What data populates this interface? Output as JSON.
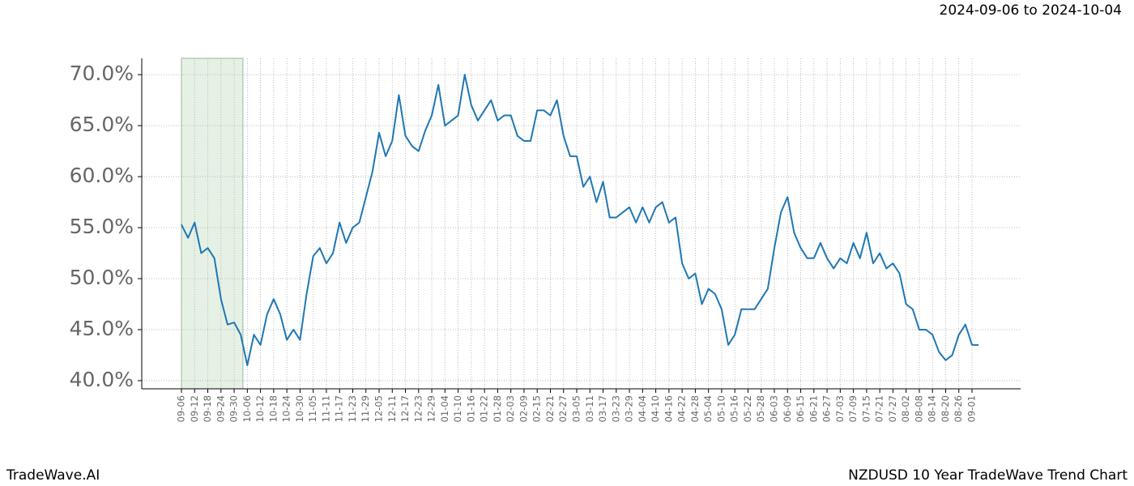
{
  "chart_data": {
    "type": "line",
    "subtitle": "2024-09-06 to 2024-10-04",
    "footer_left": "TradeWave.AI",
    "footer_right": "NZDUSD 10 Year TradeWave Trend Chart",
    "categories": [
      "09-06",
      null,
      "09-12",
      null,
      "09-18",
      null,
      "09-24",
      null,
      "09-30",
      null,
      "10-06",
      null,
      "10-12",
      null,
      "10-18",
      null,
      "10-24",
      null,
      "10-30",
      null,
      "11-05",
      null,
      "11-11",
      null,
      "11-17",
      null,
      "11-23",
      null,
      "11-29",
      null,
      "12-05",
      null,
      "12-11",
      null,
      "12-17",
      null,
      "12-23",
      null,
      "12-29",
      null,
      "01-04",
      null,
      "01-10",
      null,
      "01-16",
      null,
      "01-22",
      null,
      "01-28",
      null,
      "02-03",
      null,
      "02-09",
      null,
      "02-15",
      null,
      "02-21",
      null,
      "02-27",
      null,
      "03-05",
      null,
      "03-11",
      null,
      "03-17",
      null,
      "03-23",
      null,
      "03-29",
      null,
      "04-04",
      null,
      "04-10",
      null,
      "04-16",
      null,
      "04-22",
      null,
      "04-28",
      null,
      "05-04",
      null,
      "05-10",
      null,
      "05-16",
      null,
      "05-22",
      null,
      "05-28",
      null,
      "06-03",
      null,
      "06-09",
      null,
      "06-15",
      null,
      "06-21",
      null,
      "06-27",
      null,
      "07-03",
      null,
      "07-09",
      null,
      "07-15",
      null,
      "07-21",
      null,
      "07-27",
      null,
      "08-02",
      null,
      "08-08",
      null,
      "08-14",
      null,
      "08-20",
      null,
      "08-26",
      null,
      "09-01",
      null
    ],
    "values": [
      55.3,
      54.0,
      55.5,
      52.5,
      53.0,
      52.0,
      48.0,
      45.5,
      45.7,
      44.5,
      41.5,
      44.5,
      43.5,
      46.5,
      48.0,
      46.5,
      44.0,
      45.0,
      44.0,
      48.5,
      52.2,
      53.0,
      51.5,
      52.5,
      55.5,
      53.5,
      55.0,
      55.5,
      58.0,
      60.5,
      64.3,
      62.0,
      63.5,
      68.0,
      64.0,
      63.0,
      62.5,
      64.5,
      66.0,
      69.0,
      65.0,
      65.5,
      66.0,
      70.0,
      67.0,
      65.5,
      66.5,
      67.5,
      65.5,
      66.0,
      66.0,
      64.0,
      63.5,
      63.5,
      66.5,
      66.5,
      66.0,
      67.5,
      64.0,
      62.0,
      62.0,
      59.0,
      60.0,
      57.5,
      59.5,
      56.0,
      56.0,
      56.5,
      57.0,
      55.5,
      57.0,
      55.5,
      57.0,
      57.5,
      55.5,
      56.0,
      51.5,
      50.0,
      50.5,
      47.5,
      49.0,
      48.5,
      47.0,
      43.5,
      44.5,
      47.0,
      47.0,
      47.0,
      48.0,
      49.0,
      53.0,
      56.5,
      58.0,
      54.5,
      53.0,
      52.0,
      52.0,
      53.5,
      52.0,
      51.0,
      52.0,
      51.5,
      53.5,
      52.0,
      54.5,
      51.5,
      52.5,
      51.0,
      51.5,
      50.5,
      47.5,
      47.0,
      45.0,
      45.0,
      44.5,
      42.8,
      42.0,
      42.5,
      44.5,
      45.5,
      43.5,
      43.5
    ],
    "color": "#1f77b4",
    "highlight": [
      0,
      9.33
    ],
    "highlight_color": "#d5e8d4",
    "ylim": [
      39.2,
      71.6
    ],
    "yticks": [
      {
        "value": 40,
        "label": "40.0%"
      },
      {
        "value": 45,
        "label": "45.0%"
      },
      {
        "value": 50,
        "label": "50.0%"
      },
      {
        "value": 55,
        "label": "55.0%"
      },
      {
        "value": 60,
        "label": "60.0%"
      },
      {
        "value": 65,
        "label": "65.0%"
      },
      {
        "value": 70,
        "label": "70.0%"
      }
    ],
    "grid": true
  }
}
